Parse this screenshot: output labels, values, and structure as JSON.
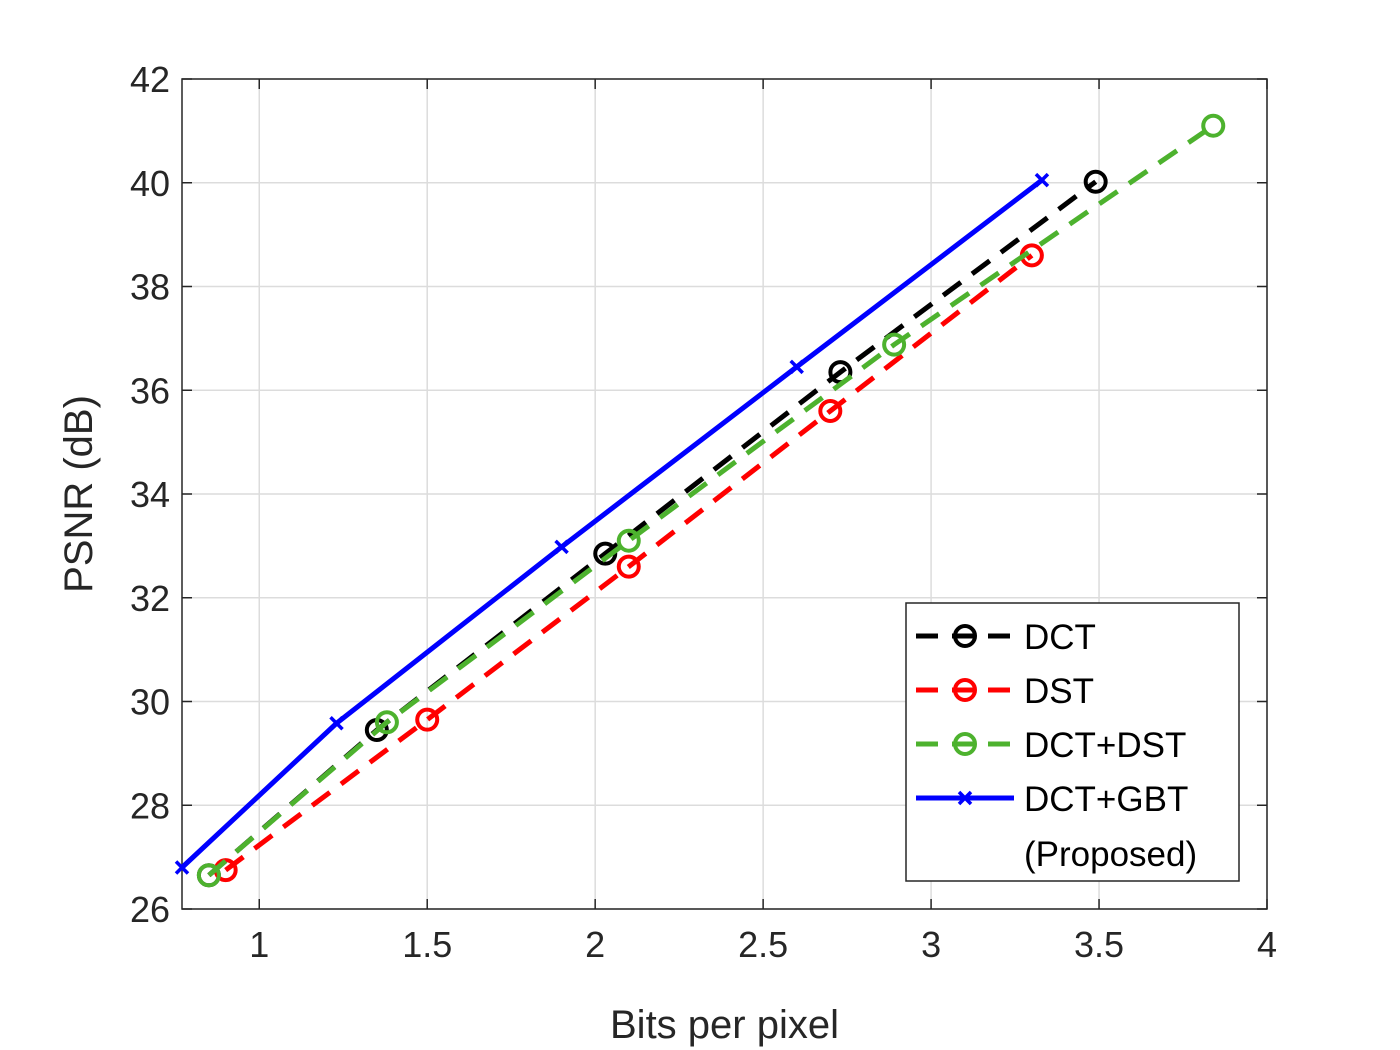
{
  "chart_data": {
    "type": "line",
    "title": "",
    "xlabel": "Bits per pixel",
    "ylabel": "PSNR (dB)",
    "xlim": [
      0.77,
      4
    ],
    "ylim": [
      26,
      42
    ],
    "xticks": [
      1,
      1.5,
      2,
      2.5,
      3,
      3.5,
      4
    ],
    "xtick_labels": [
      "1",
      "1.5",
      "2",
      "2.5",
      "3",
      "3.5",
      "4"
    ],
    "yticks": [
      26,
      28,
      30,
      32,
      34,
      36,
      38,
      40,
      42
    ],
    "ytick_labels": [
      "26",
      "28",
      "30",
      "32",
      "34",
      "36",
      "38",
      "40",
      "42"
    ],
    "grid": true,
    "legend_position": "bottom-right",
    "series": [
      {
        "name": "DCT",
        "color": "#000000",
        "line_style": "dashed",
        "marker": "circle",
        "points": [
          [
            0.85,
            26.65
          ],
          [
            1.35,
            29.45
          ],
          [
            2.03,
            32.85
          ],
          [
            2.73,
            36.35
          ],
          [
            3.49,
            40.02
          ]
        ]
      },
      {
        "name": "DST",
        "color": "#ff0000",
        "line_style": "dashed",
        "marker": "circle",
        "points": [
          [
            0.9,
            26.75
          ],
          [
            1.5,
            29.65
          ],
          [
            2.1,
            32.6
          ],
          [
            2.7,
            35.6
          ],
          [
            3.3,
            38.6
          ]
        ]
      },
      {
        "name": "DCT+DST",
        "color": "#4db22e",
        "line_style": "dashed",
        "marker": "circle",
        "points": [
          [
            0.85,
            26.65
          ],
          [
            1.38,
            29.6
          ],
          [
            2.1,
            33.1
          ],
          [
            2.89,
            36.88
          ],
          [
            3.84,
            41.1
          ]
        ]
      },
      {
        "name": "DCT+GBT",
        "name_line2": "(Proposed)",
        "color": "#0000ff",
        "line_style": "solid",
        "marker": "x",
        "points": [
          [
            0.77,
            26.8
          ],
          [
            1.23,
            29.58
          ],
          [
            1.9,
            32.98
          ],
          [
            2.6,
            36.45
          ],
          [
            3.33,
            40.05
          ]
        ]
      }
    ]
  }
}
